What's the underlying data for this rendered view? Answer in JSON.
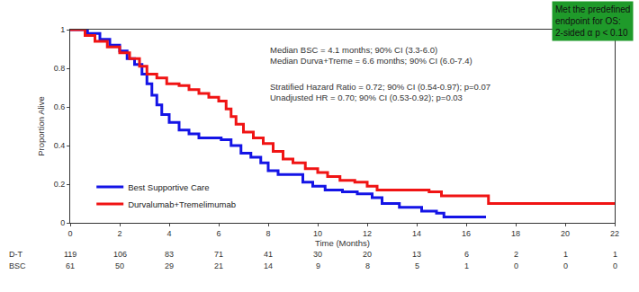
{
  "chart_data": {
    "type": "line",
    "x_label": "Time (Months)",
    "y_label": "Proportion Alive",
    "xlim": [
      0,
      22
    ],
    "xticks": [
      0,
      2,
      4,
      6,
      8,
      10,
      12,
      14,
      16,
      18,
      20,
      22
    ],
    "ylim": [
      0,
      1
    ],
    "yticks": [
      0,
      0.2,
      0.4,
      0.6,
      0.8,
      1
    ],
    "grid": false,
    "legend": "lower left",
    "line_style": "step",
    "series": [
      {
        "name": "Best Supportive Care",
        "color": "#1414e6",
        "x": [
          0,
          0.7,
          1.2,
          1.6,
          2.0,
          2.3,
          2.6,
          2.9,
          3.1,
          3.3,
          3.5,
          3.7,
          4.0,
          4.4,
          4.8,
          5.2,
          6.1,
          6.5,
          6.9,
          7.3,
          7.7,
          8.0,
          8.4,
          9.0,
          9.4,
          9.8,
          10.3,
          11.0,
          11.6,
          12.2,
          12.6,
          13.3,
          13.8,
          14.2,
          14.8,
          15.1,
          16.8
        ],
        "values": [
          1,
          0.98,
          0.95,
          0.92,
          0.89,
          0.85,
          0.82,
          0.77,
          0.72,
          0.66,
          0.61,
          0.56,
          0.52,
          0.48,
          0.46,
          0.44,
          0.43,
          0.4,
          0.36,
          0.34,
          0.31,
          0.27,
          0.25,
          0.25,
          0.21,
          0.19,
          0.17,
          0.16,
          0.15,
          0.13,
          0.1,
          0.08,
          0.08,
          0.06,
          0.05,
          0.03,
          0.03
        ]
      },
      {
        "name": "Durvalumab+Tremelimumab",
        "color": "#f01414",
        "x": [
          0,
          0.6,
          1.0,
          1.5,
          2.0,
          2.4,
          2.8,
          3.1,
          3.5,
          3.9,
          4.4,
          4.8,
          5.2,
          5.6,
          6.0,
          6.3,
          6.5,
          6.7,
          7.0,
          7.4,
          7.8,
          8.2,
          8.6,
          9.0,
          9.5,
          10.0,
          10.4,
          10.9,
          11.5,
          12.0,
          12.4,
          14.5,
          15.0,
          16.9,
          22
        ],
        "values": [
          1,
          0.97,
          0.94,
          0.91,
          0.88,
          0.85,
          0.81,
          0.77,
          0.75,
          0.72,
          0.71,
          0.69,
          0.67,
          0.65,
          0.63,
          0.59,
          0.55,
          0.51,
          0.47,
          0.44,
          0.41,
          0.37,
          0.33,
          0.31,
          0.28,
          0.26,
          0.24,
          0.22,
          0.21,
          0.19,
          0.17,
          0.16,
          0.14,
          0.1,
          0.1
        ]
      }
    ],
    "annotations": [
      [
        "Median BSC = 4.1 months; 90% CI (3.3-6.0)",
        "Median Durva+Treme = 6.6 months; 90% CI (6.0-7.4)"
      ],
      [
        "Stratified Hazard Ratio = 0.72; 90% CI (0.54-0.97); p=0.07",
        "Unadjusted HR = 0.70; 90% CI (0.53-0.92); p=0.03"
      ]
    ],
    "callout": [
      "Met the predefined",
      "endpoint for OS:",
      "2-sided α p < 0.10"
    ],
    "risk_table": {
      "times": [
        0,
        2,
        4,
        6,
        8,
        10,
        12,
        14,
        16,
        18,
        20,
        22
      ],
      "rows": [
        {
          "label": "D-T",
          "values": [
            119,
            106,
            83,
            71,
            41,
            30,
            20,
            13,
            6,
            2,
            1,
            1
          ]
        },
        {
          "label": "BSC",
          "values": [
            61,
            50,
            29,
            21,
            14,
            9,
            8,
            5,
            1,
            0,
            0,
            0
          ]
        }
      ]
    }
  }
}
